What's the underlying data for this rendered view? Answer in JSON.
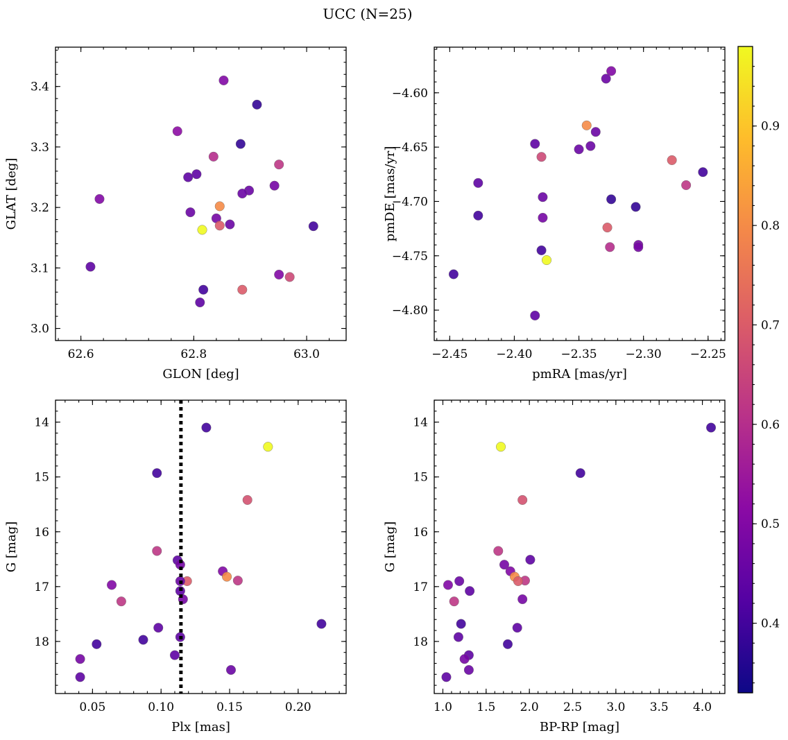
{
  "figure": {
    "title": "UCC (N=25)"
  },
  "colorbar": {
    "colormap": "plasma",
    "range": [
      0.33,
      0.98
    ],
    "ticks": [
      0.4,
      0.5,
      0.6,
      0.7,
      0.8,
      0.9
    ]
  },
  "chart_data": [
    {
      "type": "scatter",
      "xlabel": "GLON [deg]",
      "ylabel": "GLAT [deg]",
      "xlim": [
        62.555,
        63.07
      ],
      "ylim": [
        2.98,
        3.465
      ],
      "xticks": [
        62.6,
        62.8,
        63.0
      ],
      "xtick_labels": [
        "62.6",
        "62.8",
        "63.0"
      ],
      "yticks": [
        3.0,
        3.1,
        3.2,
        3.3,
        3.4
      ],
      "ytick_labels": [
        "3.0",
        "3.1",
        "3.2",
        "3.3",
        "3.4"
      ],
      "y_inverted": false,
      "points": [
        {
          "x": 62.853,
          "y": 3.41,
          "c": 0.5
        },
        {
          "x": 62.912,
          "y": 3.37,
          "c": 0.38
        },
        {
          "x": 62.771,
          "y": 3.326,
          "c": 0.52
        },
        {
          "x": 62.883,
          "y": 3.305,
          "c": 0.38
        },
        {
          "x": 62.835,
          "y": 3.284,
          "c": 0.6
        },
        {
          "x": 62.951,
          "y": 3.271,
          "c": 0.62
        },
        {
          "x": 62.805,
          "y": 3.255,
          "c": 0.44
        },
        {
          "x": 62.79,
          "y": 3.25,
          "c": 0.44
        },
        {
          "x": 62.943,
          "y": 3.236,
          "c": 0.48
        },
        {
          "x": 62.898,
          "y": 3.228,
          "c": 0.46
        },
        {
          "x": 62.886,
          "y": 3.223,
          "c": 0.46
        },
        {
          "x": 62.633,
          "y": 3.214,
          "c": 0.5
        },
        {
          "x": 62.846,
          "y": 3.202,
          "c": 0.8
        },
        {
          "x": 62.794,
          "y": 3.192,
          "c": 0.46
        },
        {
          "x": 62.84,
          "y": 3.182,
          "c": 0.48
        },
        {
          "x": 62.864,
          "y": 3.172,
          "c": 0.46
        },
        {
          "x": 62.846,
          "y": 3.17,
          "c": 0.7
        },
        {
          "x": 63.012,
          "y": 3.169,
          "c": 0.4
        },
        {
          "x": 62.815,
          "y": 3.163,
          "c": 0.98
        },
        {
          "x": 62.617,
          "y": 3.102,
          "c": 0.44
        },
        {
          "x": 62.951,
          "y": 3.089,
          "c": 0.5
        },
        {
          "x": 62.97,
          "y": 3.085,
          "c": 0.66
        },
        {
          "x": 62.886,
          "y": 3.064,
          "c": 0.7
        },
        {
          "x": 62.817,
          "y": 3.064,
          "c": 0.4
        },
        {
          "x": 62.811,
          "y": 3.043,
          "c": 0.44
        }
      ]
    },
    {
      "type": "scatter",
      "xlabel": "pmRA [mas/yr]",
      "ylabel": "pmDE [mas/yr]",
      "xlim": [
        -2.462,
        -2.237
      ],
      "ylim": [
        -4.828,
        -4.558
      ],
      "xticks": [
        -2.45,
        -2.4,
        -2.35,
        -2.3,
        -2.25
      ],
      "xtick_labels": [
        "−2.45",
        "−2.40",
        "−2.35",
        "−2.30",
        "−2.25"
      ],
      "yticks": [
        -4.8,
        -4.75,
        -4.7,
        -4.65,
        -4.6
      ],
      "ytick_labels": [
        "−4.80",
        "−4.75",
        "−4.70",
        "−4.65",
        "−4.60"
      ],
      "y_inverted": false,
      "points": [
        {
          "x": -2.325,
          "y": -4.58,
          "c": 0.5
        },
        {
          "x": -2.329,
          "y": -4.587,
          "c": 0.46
        },
        {
          "x": -2.344,
          "y": -4.63,
          "c": 0.8
        },
        {
          "x": -2.337,
          "y": -4.636,
          "c": 0.46
        },
        {
          "x": -2.384,
          "y": -4.647,
          "c": 0.44
        },
        {
          "x": -2.341,
          "y": -4.649,
          "c": 0.46
        },
        {
          "x": -2.35,
          "y": -4.652,
          "c": 0.46
        },
        {
          "x": -2.379,
          "y": -4.659,
          "c": 0.66
        },
        {
          "x": -2.278,
          "y": -4.662,
          "c": 0.7
        },
        {
          "x": -2.254,
          "y": -4.673,
          "c": 0.4
        },
        {
          "x": -2.428,
          "y": -4.683,
          "c": 0.44
        },
        {
          "x": -2.267,
          "y": -4.685,
          "c": 0.62
        },
        {
          "x": -2.378,
          "y": -4.696,
          "c": 0.46
        },
        {
          "x": -2.325,
          "y": -4.698,
          "c": 0.38
        },
        {
          "x": -2.306,
          "y": -4.705,
          "c": 0.38
        },
        {
          "x": -2.428,
          "y": -4.713,
          "c": 0.4
        },
        {
          "x": -2.378,
          "y": -4.715,
          "c": 0.48
        },
        {
          "x": -2.328,
          "y": -4.724,
          "c": 0.7
        },
        {
          "x": -2.304,
          "y": -4.74,
          "c": 0.48
        },
        {
          "x": -2.326,
          "y": -4.742,
          "c": 0.6
        },
        {
          "x": -2.304,
          "y": -4.742,
          "c": 0.48
        },
        {
          "x": -2.379,
          "y": -4.745,
          "c": 0.4
        },
        {
          "x": -2.375,
          "y": -4.754,
          "c": 0.98
        },
        {
          "x": -2.447,
          "y": -4.767,
          "c": 0.4
        },
        {
          "x": -2.384,
          "y": -4.805,
          "c": 0.44
        }
      ]
    },
    {
      "type": "scatter",
      "xlabel": "Plx [mas]",
      "ylabel": "G [mag]",
      "xlim": [
        0.023,
        0.235
      ],
      "ylim": [
        13.6,
        18.95
      ],
      "xticks": [
        0.05,
        0.1,
        0.15,
        0.2
      ],
      "xtick_labels": [
        "0.05",
        "0.10",
        "0.15",
        "0.20"
      ],
      "yticks": [
        14,
        15,
        16,
        17,
        18
      ],
      "ytick_labels": [
        "14",
        "15",
        "16",
        "17",
        "18"
      ],
      "y_inverted": true,
      "vline": {
        "x": 0.1145,
        "style": "dotted"
      },
      "points": [
        {
          "x": 0.133,
          "y": 14.1,
          "c": 0.4
        },
        {
          "x": 0.178,
          "y": 14.45,
          "c": 0.98
        },
        {
          "x": 0.097,
          "y": 14.93,
          "c": 0.4
        },
        {
          "x": 0.163,
          "y": 15.42,
          "c": 0.68
        },
        {
          "x": 0.097,
          "y": 16.35,
          "c": 0.62
        },
        {
          "x": 0.112,
          "y": 16.52,
          "c": 0.44
        },
        {
          "x": 0.114,
          "y": 16.6,
          "c": 0.48
        },
        {
          "x": 0.145,
          "y": 16.72,
          "c": 0.5
        },
        {
          "x": 0.148,
          "y": 16.82,
          "c": 0.8
        },
        {
          "x": 0.119,
          "y": 16.9,
          "c": 0.7
        },
        {
          "x": 0.156,
          "y": 16.89,
          "c": 0.62
        },
        {
          "x": 0.114,
          "y": 16.9,
          "c": 0.46
        },
        {
          "x": 0.064,
          "y": 16.97,
          "c": 0.5
        },
        {
          "x": 0.114,
          "y": 17.08,
          "c": 0.44
        },
        {
          "x": 0.116,
          "y": 17.23,
          "c": 0.48
        },
        {
          "x": 0.071,
          "y": 17.27,
          "c": 0.62
        },
        {
          "x": 0.217,
          "y": 17.68,
          "c": 0.4
        },
        {
          "x": 0.098,
          "y": 17.75,
          "c": 0.44
        },
        {
          "x": 0.114,
          "y": 17.92,
          "c": 0.44
        },
        {
          "x": 0.087,
          "y": 17.97,
          "c": 0.4
        },
        {
          "x": 0.053,
          "y": 18.05,
          "c": 0.4
        },
        {
          "x": 0.11,
          "y": 18.25,
          "c": 0.44
        },
        {
          "x": 0.041,
          "y": 18.32,
          "c": 0.48
        },
        {
          "x": 0.151,
          "y": 18.52,
          "c": 0.46
        },
        {
          "x": 0.041,
          "y": 18.65,
          "c": 0.44
        }
      ]
    },
    {
      "type": "scatter",
      "xlabel": "BP-RP [mag]",
      "ylabel": "G [mag]",
      "xlim": [
        0.9,
        4.26
      ],
      "ylim": [
        13.6,
        18.95
      ],
      "xticks": [
        1.0,
        1.5,
        2.0,
        2.5,
        3.0,
        3.5,
        4.0
      ],
      "xtick_labels": [
        "1.0",
        "1.5",
        "2.0",
        "2.5",
        "3.0",
        "3.5",
        "4.0"
      ],
      "yticks": [
        14,
        15,
        16,
        17,
        18
      ],
      "ytick_labels": [
        "14",
        "15",
        "16",
        "17",
        "18"
      ],
      "y_inverted": true,
      "points": [
        {
          "x": 4.1,
          "y": 14.1,
          "c": 0.4
        },
        {
          "x": 1.67,
          "y": 14.45,
          "c": 0.98
        },
        {
          "x": 2.59,
          "y": 14.93,
          "c": 0.4
        },
        {
          "x": 1.92,
          "y": 15.42,
          "c": 0.68
        },
        {
          "x": 1.64,
          "y": 16.35,
          "c": 0.62
        },
        {
          "x": 2.01,
          "y": 16.51,
          "c": 0.44
        },
        {
          "x": 1.71,
          "y": 16.6,
          "c": 0.48
        },
        {
          "x": 1.78,
          "y": 16.72,
          "c": 0.5
        },
        {
          "x": 1.83,
          "y": 16.82,
          "c": 0.8
        },
        {
          "x": 1.95,
          "y": 16.89,
          "c": 0.62
        },
        {
          "x": 1.87,
          "y": 16.9,
          "c": 0.7
        },
        {
          "x": 1.19,
          "y": 16.9,
          "c": 0.46
        },
        {
          "x": 1.06,
          "y": 16.97,
          "c": 0.5
        },
        {
          "x": 1.31,
          "y": 17.08,
          "c": 0.44
        },
        {
          "x": 1.92,
          "y": 17.23,
          "c": 0.48
        },
        {
          "x": 1.13,
          "y": 17.27,
          "c": 0.62
        },
        {
          "x": 1.21,
          "y": 17.68,
          "c": 0.4
        },
        {
          "x": 1.86,
          "y": 17.75,
          "c": 0.44
        },
        {
          "x": 1.18,
          "y": 17.92,
          "c": 0.44
        },
        {
          "x": 1.75,
          "y": 18.05,
          "c": 0.4
        },
        {
          "x": 1.3,
          "y": 18.25,
          "c": 0.44
        },
        {
          "x": 1.25,
          "y": 18.32,
          "c": 0.48
        },
        {
          "x": 1.3,
          "y": 18.52,
          "c": 0.46
        },
        {
          "x": 1.04,
          "y": 18.65,
          "c": 0.44
        }
      ]
    }
  ]
}
